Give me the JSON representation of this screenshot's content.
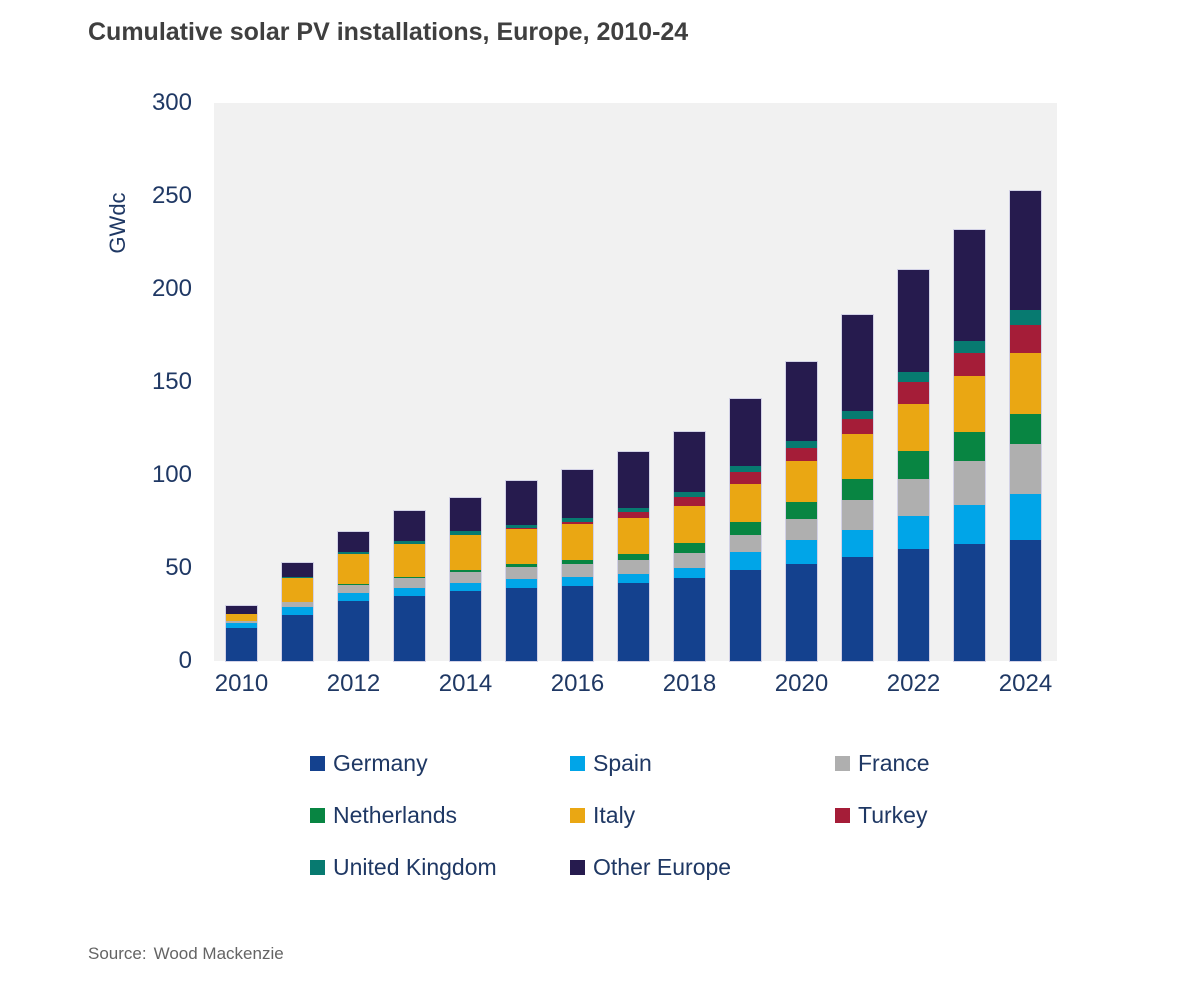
{
  "title": "Cumulative solar PV installations, Europe, 2010-24",
  "source": {
    "label": "Source:",
    "text": "Wood Mackenzie"
  },
  "chart_data": {
    "type": "bar",
    "stacked": true,
    "title": "Cumulative solar PV installations, Europe, 2010-24",
    "xlabel": "",
    "ylabel": "GWdc",
    "ylim": [
      0,
      300
    ],
    "yticks": [
      0,
      50,
      100,
      150,
      200,
      250,
      300
    ],
    "grid": false,
    "plot_background": "#F1F1F1",
    "legend_position": "bottom",
    "categories": [
      2010,
      2011,
      2012,
      2013,
      2014,
      2015,
      2016,
      2017,
      2018,
      2019,
      2020,
      2021,
      2022,
      2023,
      2024
    ],
    "xtick_labels": [
      "2010",
      "2012",
      "2014",
      "2016",
      "2018",
      "2020",
      "2022",
      "2024"
    ],
    "xtick_indices": [
      0,
      2,
      4,
      6,
      8,
      10,
      12,
      14
    ],
    "series": [
      {
        "name": "Germany",
        "color": "#14418E",
        "values": [
          17.5,
          24.8,
          32.0,
          34.8,
          37.5,
          39.2,
          40.5,
          41.8,
          44.8,
          48.8,
          52.3,
          55.9,
          60.4,
          63.0,
          65.2
        ]
      },
      {
        "name": "Spain",
        "color": "#00A5E8",
        "values": [
          2.7,
          4.3,
          4.6,
          4.7,
          4.7,
          4.8,
          4.9,
          5.0,
          5.4,
          9.9,
          12.5,
          14.6,
          17.3,
          20.9,
          24.6
        ]
      },
      {
        "name": "France",
        "color": "#AFAFAF",
        "values": [
          1.2,
          2.8,
          4.3,
          5.1,
          5.9,
          6.3,
          6.6,
          7.5,
          8.0,
          8.9,
          11.6,
          16.1,
          20.2,
          23.4,
          26.8
        ]
      },
      {
        "name": "Netherlands",
        "color": "#088542",
        "values": [
          0.1,
          0.1,
          0.3,
          0.7,
          1.0,
          1.8,
          2.3,
          3.2,
          5.0,
          7.1,
          8.9,
          11.2,
          15.1,
          16.1,
          16.4
        ]
      },
      {
        "name": "Italy",
        "color": "#EAA713",
        "values": [
          3.6,
          12.8,
          16.4,
          17.6,
          18.5,
          19.0,
          19.3,
          19.6,
          19.9,
          20.6,
          22.3,
          24.2,
          25.4,
          29.8,
          32.5
        ]
      },
      {
        "name": "Turkey",
        "color": "#A51D38",
        "values": [
          0.1,
          0.1,
          0.1,
          0.2,
          0.3,
          0.3,
          1.3,
          2.8,
          5.0,
          6.5,
          7.1,
          8.0,
          11.5,
          12.5,
          15.3
        ]
      },
      {
        "name": "United Kingdom",
        "color": "#077A70",
        "values": [
          0.1,
          0.5,
          1.0,
          1.5,
          1.8,
          2.0,
          2.2,
          2.5,
          2.8,
          3.0,
          3.6,
          4.5,
          5.5,
          6.5,
          7.9
        ]
      },
      {
        "name": "Other Europe",
        "color": "#261B4E",
        "values": [
          4.4,
          7.1,
          10.7,
          15.9,
          17.8,
          23.2,
          25.8,
          30.1,
          32.1,
          36.2,
          42.7,
          51.5,
          54.6,
          59.3,
          63.8
        ]
      }
    ],
    "totals": [
      29.7,
      52.5,
      69.4,
      80.5,
      87.5,
      96.6,
      102.9,
      112.5,
      123.0,
      141.0,
      161.0,
      186.0,
      210.0,
      231.5,
      252.5
    ]
  }
}
